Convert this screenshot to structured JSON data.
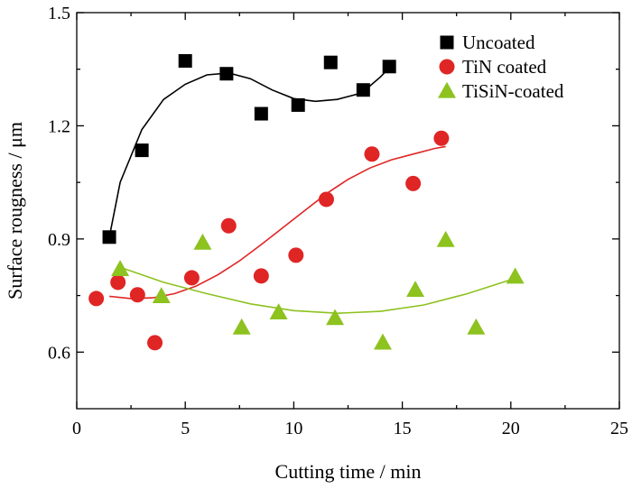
{
  "chart_data": {
    "type": "scatter",
    "xlabel": "Cutting time / min",
    "ylabel": "Surface rougness / μm",
    "xlim": [
      0,
      25
    ],
    "ylim": [
      0.45,
      1.5
    ],
    "xticks": [
      "0",
      "5",
      "10",
      "15",
      "20",
      "25"
    ],
    "yticks": [
      "0.6",
      "0.9",
      "1.2",
      "1.5"
    ],
    "grid": false,
    "legend_position": "top-right",
    "series": [
      {
        "name": "Uncoated",
        "marker": "square",
        "color": "#000000",
        "x": [
          1.5,
          3.0,
          5.0,
          6.9,
          8.5,
          10.2,
          11.7,
          13.2,
          14.4
        ],
        "y": [
          0.905,
          1.135,
          1.372,
          1.338,
          1.232,
          1.255,
          1.368,
          1.295,
          1.357
        ],
        "fit": {
          "x": [
            1.5,
            2.0,
            3.0,
            4.0,
            5.0,
            6.0,
            7.0,
            8.0,
            9.0,
            10.0,
            11.0,
            12.0,
            13.0,
            13.5,
            14.0,
            14.5
          ],
          "y": [
            0.905,
            1.05,
            1.19,
            1.27,
            1.31,
            1.335,
            1.34,
            1.325,
            1.295,
            1.272,
            1.265,
            1.27,
            1.285,
            1.305,
            1.33,
            1.36
          ]
        }
      },
      {
        "name": "TiN coated",
        "marker": "circle",
        "color": "#e02525",
        "x": [
          0.9,
          1.9,
          2.8,
          3.6,
          5.3,
          7.0,
          8.5,
          10.1,
          11.5,
          13.6,
          15.5,
          16.8
        ],
        "y": [
          0.742,
          0.785,
          0.752,
          0.625,
          0.797,
          0.935,
          0.802,
          0.857,
          1.005,
          1.125,
          1.047,
          1.167
        ],
        "fit": {
          "x": [
            1.5,
            2.5,
            3.5,
            4.5,
            5.5,
            6.5,
            7.5,
            8.5,
            9.5,
            10.5,
            11.5,
            12.5,
            13.5,
            14.5,
            15.5,
            16.5,
            17.0
          ],
          "y": [
            0.748,
            0.742,
            0.744,
            0.755,
            0.775,
            0.805,
            0.842,
            0.885,
            0.93,
            0.975,
            1.02,
            1.058,
            1.088,
            1.11,
            1.125,
            1.14,
            1.145
          ]
        }
      },
      {
        "name": "TiSiN-coated",
        "marker": "triangle",
        "color": "#8dc21f",
        "x": [
          2.0,
          3.9,
          5.8,
          7.6,
          9.3,
          11.9,
          14.1,
          15.6,
          17.0,
          18.4,
          20.2
        ],
        "y": [
          0.82,
          0.748,
          0.89,
          0.665,
          0.705,
          0.69,
          0.625,
          0.765,
          0.897,
          0.665,
          0.8
        ],
        "fit": {
          "x": [
            2.0,
            4.0,
            6.0,
            8.0,
            10.0,
            12.0,
            14.0,
            16.0,
            18.0,
            20.0,
            20.4
          ],
          "y": [
            0.825,
            0.785,
            0.755,
            0.728,
            0.71,
            0.703,
            0.708,
            0.725,
            0.755,
            0.792,
            0.8
          ]
        }
      }
    ]
  }
}
